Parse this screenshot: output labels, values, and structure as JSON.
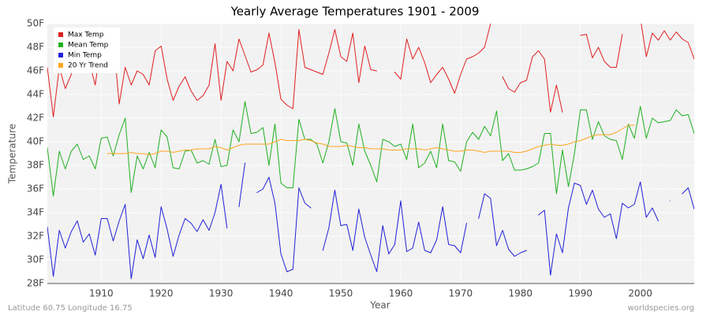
{
  "chart_data": {
    "type": "line",
    "title": "Yearly Average Temperatures 1901 - 2009",
    "x_label": "Year",
    "y_label": "Temperature",
    "footer_left": "Latitude 60.75 Longitude 16.75",
    "footer_right": "worldspecies.org",
    "legend": "top-left",
    "grid": true,
    "xlim": [
      1901,
      2009
    ],
    "xticks": [
      1910,
      1920,
      1930,
      1940,
      1950,
      1960,
      1970,
      1980,
      1990,
      2000
    ],
    "ylim": [
      28,
      50
    ],
    "yticks": [
      {
        "value": 28,
        "label": "28F"
      },
      {
        "value": 30,
        "label": "30F"
      },
      {
        "value": 32,
        "label": "32F"
      },
      {
        "value": 34,
        "label": "34F"
      },
      {
        "value": 36,
        "label": "36F"
      },
      {
        "value": 38,
        "label": "38F"
      },
      {
        "value": 40,
        "label": "40F"
      },
      {
        "value": 42,
        "label": "42F"
      },
      {
        "value": 44,
        "label": "44F"
      },
      {
        "value": 46,
        "label": "46F"
      },
      {
        "value": 48,
        "label": "48F"
      },
      {
        "value": 50,
        "label": "50F"
      }
    ],
    "x": [
      1901,
      1902,
      1903,
      1904,
      1905,
      1906,
      1907,
      1908,
      1909,
      1910,
      1911,
      1912,
      1913,
      1914,
      1915,
      1916,
      1917,
      1918,
      1919,
      1920,
      1921,
      1922,
      1923,
      1924,
      1925,
      1926,
      1927,
      1928,
      1929,
      1930,
      1931,
      1932,
      1933,
      1934,
      1935,
      1936,
      1937,
      1938,
      1939,
      1940,
      1941,
      1942,
      1943,
      1944,
      1945,
      1946,
      1947,
      1948,
      1949,
      1950,
      1951,
      1952,
      1953,
      1954,
      1955,
      1956,
      1957,
      1958,
      1959,
      1960,
      1961,
      1962,
      1963,
      1964,
      1965,
      1966,
      1967,
      1968,
      1969,
      1970,
      1971,
      1972,
      1973,
      1974,
      1975,
      1976,
      1977,
      1978,
      1979,
      1980,
      1981,
      1982,
      1983,
      1984,
      1985,
      1986,
      1987,
      1988,
      1989,
      1990,
      1991,
      1992,
      1993,
      1994,
      1995,
      1996,
      1997,
      1998,
      1999,
      2000,
      2001,
      2002,
      2003,
      2004,
      2005,
      2006,
      2007,
      2008,
      2009
    ],
    "series": [
      {
        "name": "Max Temp",
        "color": "#e02020",
        "values": [
          46.3,
          42.1,
          46.3,
          44.5,
          45.7,
          47.3,
          46.3,
          46.7,
          44.8,
          48.5,
          48.0,
          48.8,
          43.2,
          46.3,
          44.8,
          46.0,
          45.7,
          44.8,
          47.7,
          48.1,
          45.3,
          43.5,
          44.7,
          45.5,
          44.3,
          43.5,
          43.9,
          44.8,
          48.3,
          43.5,
          46.8,
          46.0,
          48.7,
          47.3,
          45.9,
          46.1,
          46.5,
          49.2,
          46.7,
          43.6,
          43.1,
          42.8,
          49.5,
          46.3,
          46.1,
          45.9,
          45.7,
          47.5,
          49.5,
          47.2,
          46.8,
          49.2,
          45.0,
          48.1,
          46.1,
          46.0,
          null,
          null,
          45.9,
          45.3,
          48.7,
          47.0,
          48.0,
          46.7,
          45.0,
          45.7,
          46.3,
          45.3,
          44.1,
          45.7,
          47.0,
          47.2,
          47.5,
          48.0,
          50.0,
          null,
          45.5,
          44.5,
          44.2,
          45.0,
          45.2,
          47.2,
          47.7,
          47.0,
          42.5,
          44.8,
          42.5,
          null,
          null,
          49.0,
          49.1,
          47.1,
          48.0,
          46.8,
          46.3,
          46.3,
          49.1,
          null,
          null,
          50.5,
          47.2,
          49.2,
          48.6,
          49.4,
          48.6,
          49.3,
          48.7,
          48.4,
          47.0
        ]
      },
      {
        "name": "Mean Temp",
        "color": "#20b020",
        "values": [
          39.5,
          35.4,
          39.2,
          37.7,
          39.2,
          39.8,
          38.5,
          38.8,
          37.7,
          40.3,
          40.4,
          38.8,
          40.6,
          42.0,
          35.7,
          38.8,
          37.7,
          39.1,
          37.8,
          41.0,
          40.4,
          37.8,
          37.7,
          39.2,
          39.3,
          38.2,
          38.4,
          38.1,
          40.2,
          37.9,
          38.0,
          41.0,
          40.0,
          43.4,
          40.7,
          40.8,
          41.2,
          38.0,
          41.5,
          36.5,
          36.1,
          36.1,
          41.9,
          40.2,
          40.2,
          39.8,
          38.2,
          40.0,
          42.8,
          40.0,
          39.9,
          38.0,
          41.5,
          39.2,
          38.0,
          36.6,
          40.2,
          40.0,
          39.6,
          39.8,
          38.5,
          41.5,
          37.8,
          38.2,
          39.2,
          37.8,
          41.5,
          38.4,
          38.3,
          37.5,
          40.0,
          40.8,
          40.2,
          41.3,
          40.5,
          42.6,
          38.4,
          39.0,
          37.6,
          37.6,
          37.7,
          37.9,
          38.2,
          40.7,
          40.7,
          35.6,
          39.3,
          36.2,
          39.0,
          42.7,
          42.7,
          40.2,
          41.7,
          40.5,
          40.2,
          40.1,
          38.5,
          41.5,
          40.3,
          43.0,
          40.3,
          42.0,
          41.6,
          41.7,
          41.8,
          42.7,
          42.2,
          42.3,
          40.7
        ]
      },
      {
        "name": "Min Temp",
        "color": "#2020d8",
        "values": [
          32.8,
          28.6,
          32.5,
          31.0,
          32.4,
          33.3,
          31.5,
          32.2,
          30.4,
          33.5,
          33.5,
          31.6,
          33.3,
          34.7,
          28.4,
          31.7,
          30.1,
          32.1,
          30.2,
          34.5,
          32.6,
          30.3,
          32.1,
          33.5,
          33.1,
          32.4,
          33.4,
          32.5,
          34.0,
          36.4,
          32.7,
          null,
          34.5,
          38.2,
          null,
          35.7,
          36.0,
          37.0,
          34.8,
          30.5,
          29.0,
          29.2,
          36.1,
          34.8,
          34.4,
          null,
          30.8,
          32.7,
          35.9,
          32.9,
          33.0,
          30.8,
          34.3,
          31.9,
          30.4,
          29.0,
          32.9,
          30.5,
          31.3,
          35.0,
          30.7,
          31.0,
          33.2,
          30.8,
          30.6,
          31.7,
          34.5,
          31.3,
          31.2,
          30.6,
          33.1,
          null,
          33.5,
          35.6,
          35.2,
          31.2,
          32.5,
          30.9,
          30.3,
          30.6,
          30.8,
          null,
          33.8,
          34.2,
          28.7,
          32.2,
          30.6,
          34.4,
          36.5,
          36.3,
          34.7,
          35.9,
          34.3,
          33.6,
          33.9,
          31.8,
          34.8,
          34.4,
          34.7,
          36.6,
          33.6,
          34.4,
          33.3,
          null,
          35.0,
          null,
          35.6,
          36.1,
          34.3
        ]
      },
      {
        "name": "20 Yr Trend",
        "color": "#ffa520",
        "values": [
          null,
          null,
          null,
          null,
          null,
          null,
          null,
          null,
          null,
          null,
          39.0,
          39.0,
          39.0,
          39.0,
          39.1,
          39.0,
          39.0,
          38.9,
          39.0,
          39.2,
          39.2,
          39.1,
          39.2,
          39.3,
          39.3,
          39.4,
          39.4,
          39.4,
          39.6,
          39.5,
          39.3,
          39.5,
          39.7,
          39.8,
          39.8,
          39.8,
          39.8,
          39.8,
          40.0,
          40.2,
          40.1,
          40.1,
          40.1,
          40.2,
          40.1,
          39.9,
          39.8,
          39.6,
          39.6,
          39.6,
          39.7,
          39.6,
          39.5,
          39.5,
          39.4,
          39.4,
          39.4,
          39.3,
          39.3,
          39.3,
          39.4,
          39.4,
          39.4,
          39.3,
          39.4,
          39.5,
          39.4,
          39.3,
          39.2,
          39.2,
          39.3,
          39.3,
          39.2,
          39.1,
          39.2,
          39.2,
          39.2,
          39.2,
          39.1,
          39.1,
          39.2,
          39.4,
          39.6,
          39.7,
          39.8,
          39.7,
          39.7,
          39.8,
          40.0,
          40.1,
          40.3,
          40.5,
          40.6,
          40.6,
          40.6,
          40.8,
          41.1,
          41.4,
          41.4,
          null,
          null,
          null,
          null,
          null,
          null,
          null,
          null,
          null,
          null
        ]
      }
    ]
  }
}
